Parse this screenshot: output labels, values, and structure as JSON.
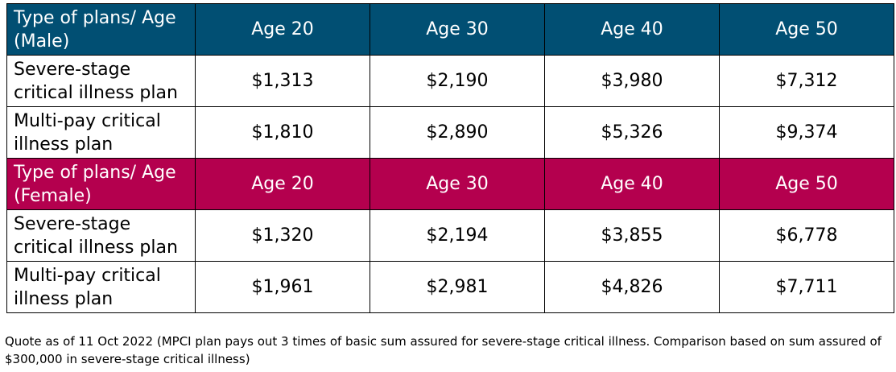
{
  "colors": {
    "male_header_bg": "#014f73",
    "female_header_bg": "#b4004e",
    "header_text": "#ffffff",
    "border": "#000000"
  },
  "male": {
    "header": {
      "label": "Type of plans/ Age (Male)",
      "ages": [
        "Age 20",
        "Age 30",
        "Age 40",
        "Age 50"
      ]
    },
    "rows": [
      {
        "plan": "Severe-stage critical illness plan",
        "values": [
          "$1,313",
          "$2,190",
          "$3,980",
          "$7,312"
        ]
      },
      {
        "plan": "Multi-pay critical illness plan",
        "values": [
          "$1,810",
          "$2,890",
          "$5,326",
          "$9,374"
        ]
      }
    ]
  },
  "female": {
    "header": {
      "label": "Type of plans/ Age (Female)",
      "ages": [
        "Age 20",
        "Age 30",
        "Age 40",
        "Age 50"
      ]
    },
    "rows": [
      {
        "plan": "Severe-stage critical illness plan",
        "values": [
          "$1,320",
          "$2,194",
          "$3,855",
          "$6,778"
        ]
      },
      {
        "plan": "Multi-pay critical illness plan",
        "values": [
          "$1,961",
          "$2,981",
          "$4,826",
          "$7,711"
        ]
      }
    ]
  },
  "footnote": "Quote as of 11 Oct 2022 (MPCI plan pays out 3 times of basic sum assured for severe-stage critical illness. Comparison based on sum assured of $300,000 in severe-stage critical illness)"
}
